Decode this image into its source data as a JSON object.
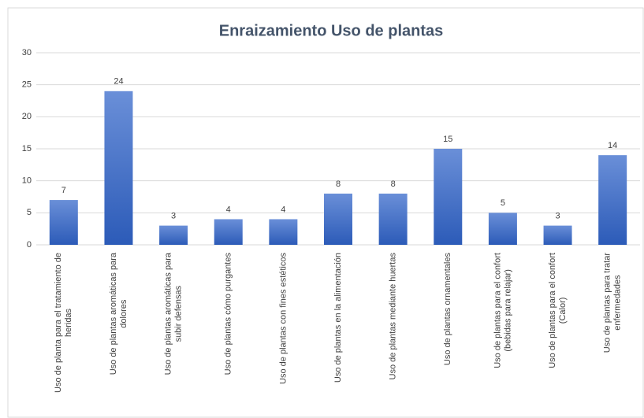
{
  "chart_data": {
    "type": "bar",
    "title": "Enraizamiento Uso de plantas",
    "categories": [
      [
        "Uso de planta para el tratamiento de",
        "heridas"
      ],
      [
        "Uso de plantas aromáticas para",
        "dolores"
      ],
      [
        "Uso de plantas aromáticas para",
        "subir defensas"
      ],
      [
        "Uso de plantas cómo purgantes"
      ],
      [
        "Uso de plantas con fines estéticos"
      ],
      [
        "Uso de plantas en la alimentación"
      ],
      [
        "Uso de plantas mediante huertas"
      ],
      [
        "Uso de plantas ornamentales"
      ],
      [
        "Uso de plantas para el confort",
        "(bebidas para relajar)"
      ],
      [
        "Uso de plantas para el confort",
        "(Calor)"
      ],
      [
        "Uso de plantas para tratar",
        "enfermedades"
      ]
    ],
    "values": [
      7,
      24,
      3,
      4,
      4,
      8,
      8,
      15,
      5,
      3,
      14
    ],
    "color": "#4472c4",
    "ylim": [
      0,
      30
    ],
    "yticks": [
      0,
      5,
      10,
      15,
      20,
      25,
      30
    ],
    "grid": true
  }
}
